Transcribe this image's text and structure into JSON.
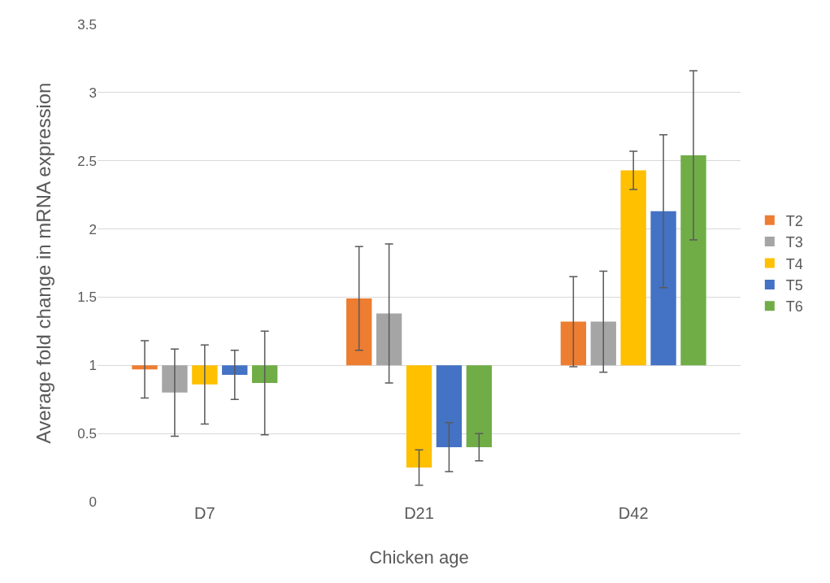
{
  "chart_data": {
    "type": "bar",
    "xlabel": "Chicken age",
    "ylabel": "Average fold change in mRNA expression",
    "categories": [
      "D7",
      "D21",
      "D42"
    ],
    "series": [
      {
        "name": "T2",
        "color": "#ed7d31",
        "base": [
          1,
          1,
          1
        ],
        "values": [
          -0.03,
          0.49,
          0.32
        ],
        "errors": [
          0.21,
          0.38,
          0.33
        ]
      },
      {
        "name": "T3",
        "color": "#a5a5a5",
        "base": [
          1,
          1,
          1
        ],
        "values": [
          -0.2,
          0.38,
          0.32
        ],
        "errors": [
          0.32,
          0.51,
          0.37
        ]
      },
      {
        "name": "T4",
        "color": "#ffc000",
        "base": [
          1,
          1,
          1
        ],
        "values": [
          -0.14,
          -0.75,
          1.43
        ],
        "errors": [
          0.29,
          0.13,
          0.14
        ]
      },
      {
        "name": "T5",
        "color": "#4472c4",
        "base": [
          1,
          1,
          1
        ],
        "values": [
          -0.07,
          -0.6,
          1.13
        ],
        "errors": [
          0.18,
          0.18,
          0.56
        ]
      },
      {
        "name": "T6",
        "color": "#70ad47",
        "base": [
          1,
          1,
          1
        ],
        "values": [
          -0.13,
          -0.6,
          1.54
        ],
        "errors": [
          0.38,
          0.1,
          0.62
        ]
      }
    ],
    "ylim": [
      0,
      3.5
    ],
    "yticks": [
      0,
      0.5,
      1,
      1.5,
      2,
      2.5,
      3,
      3.5
    ],
    "grid": "y",
    "legend": "right"
  }
}
